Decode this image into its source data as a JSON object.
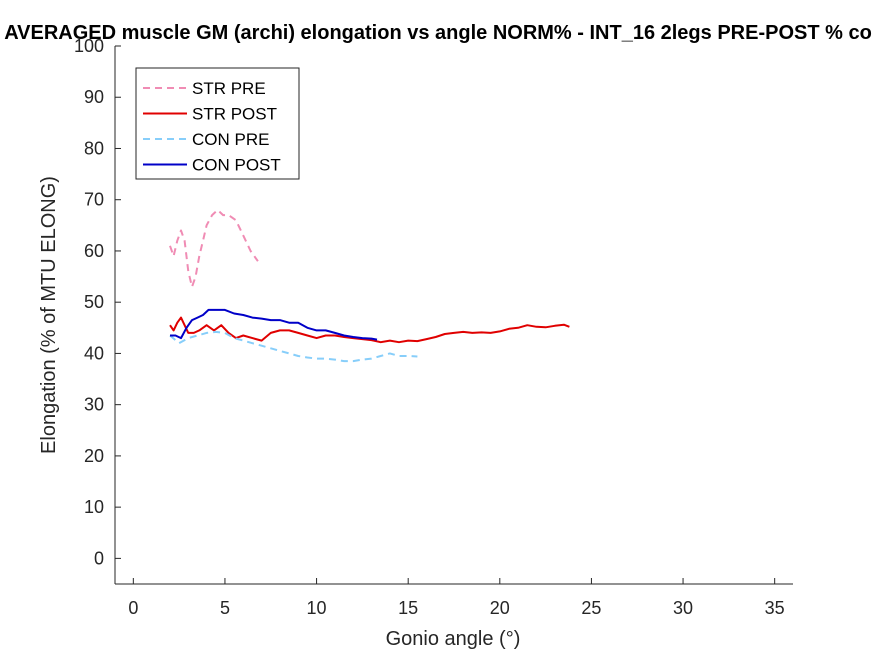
{
  "chart_data": {
    "type": "line",
    "title": "AVERAGED muscle GM (archi) elongation vs angle NORM% - INT_16 2legs PRE-POST % co",
    "xlabel": "Gonio angle (°)",
    "ylabel": "Elongation (% of MTU ELONG)",
    "xlim": [
      -1,
      36
    ],
    "ylim": [
      -5,
      100
    ],
    "xticks": [
      "0",
      "5",
      "10",
      "15",
      "20",
      "25",
      "30",
      "35"
    ],
    "yticks": [
      "0",
      "10",
      "20",
      "30",
      "40",
      "50",
      "60",
      "70",
      "80",
      "90",
      "100"
    ],
    "grid": false,
    "legend_position": "top-left",
    "series": [
      {
        "name": "STR PRE",
        "color": "#f08cb4",
        "style": "dashed",
        "x": [
          2.0,
          2.2,
          2.4,
          2.6,
          2.8,
          3.0,
          3.2,
          3.4,
          3.6,
          3.8,
          4.0,
          4.3,
          4.6,
          4.9,
          5.2,
          5.6,
          6.0,
          6.4,
          6.8
        ],
        "y": [
          61,
          59,
          62,
          64,
          62,
          56,
          53,
          55,
          59,
          62,
          65,
          67,
          68,
          67,
          67,
          66,
          63,
          60,
          58
        ]
      },
      {
        "name": "STR POST",
        "color": "#e00000",
        "style": "solid",
        "x": [
          2.0,
          2.2,
          2.4,
          2.6,
          2.8,
          3.0,
          3.3,
          3.6,
          4.0,
          4.4,
          4.8,
          5.2,
          5.6,
          6.0,
          6.5,
          7.0,
          7.5,
          8.0,
          8.5,
          9.0,
          9.5,
          10.0,
          10.5,
          11.0,
          11.5,
          12.0,
          12.5,
          13.0,
          13.5,
          14.0,
          14.5,
          15.0,
          15.5,
          16.0,
          16.5,
          17.0,
          17.5,
          18.0,
          18.5,
          19.0,
          19.5,
          20.0,
          20.5,
          21.0,
          21.5,
          22.0,
          22.5,
          23.0,
          23.5,
          23.8
        ],
        "y": [
          45.5,
          44.5,
          46,
          47,
          45.5,
          44,
          44,
          44.5,
          45.5,
          44.5,
          45.5,
          44,
          43,
          43.5,
          43,
          42.5,
          44,
          44.5,
          44.5,
          44,
          43.5,
          43,
          43.5,
          43.5,
          43.2,
          43,
          42.8,
          42.6,
          42.2,
          42.5,
          42.2,
          42.5,
          42.4,
          42.8,
          43.2,
          43.8,
          44,
          44.2,
          44,
          44.1,
          44,
          44.3,
          44.8,
          45,
          45.5,
          45.2,
          45.1,
          45.4,
          45.6,
          45.2
        ]
      },
      {
        "name": "CON PRE",
        "color": "#87cefa",
        "style": "dashed",
        "x": [
          2.0,
          2.5,
          3.0,
          3.5,
          4.0,
          4.5,
          5.0,
          5.5,
          6.0,
          6.5,
          7.0,
          7.5,
          8.0,
          8.5,
          9.0,
          9.5,
          10.0,
          10.5,
          11.0,
          11.5,
          12.0,
          12.5,
          13.0,
          13.5,
          14.0,
          14.5,
          15.0,
          15.5
        ],
        "y": [
          43.5,
          42,
          43,
          43.5,
          44,
          44.2,
          44,
          43,
          42.5,
          42,
          41.5,
          41,
          40.5,
          40,
          39.5,
          39.2,
          39,
          39,
          38.8,
          38.5,
          38.5,
          38.8,
          39,
          39.5,
          40,
          39.5,
          39.5,
          39.4
        ]
      },
      {
        "name": "CON POST",
        "color": "#0000c8",
        "style": "solid",
        "x": [
          2.0,
          2.3,
          2.6,
          2.9,
          3.2,
          3.5,
          3.8,
          4.1,
          4.5,
          5.0,
          5.5,
          6.0,
          6.5,
          7.0,
          7.5,
          8.0,
          8.5,
          9.0,
          9.5,
          10.0,
          10.5,
          11.0,
          11.5,
          12.0,
          12.5,
          13.0,
          13.3
        ],
        "y": [
          43.5,
          43.5,
          43,
          45,
          46.5,
          47,
          47.5,
          48.5,
          48.5,
          48.5,
          47.8,
          47.5,
          47,
          46.8,
          46.5,
          46.5,
          46,
          46,
          45,
          44.5,
          44.5,
          44,
          43.5,
          43.2,
          43,
          42.9,
          42.7
        ]
      }
    ]
  }
}
